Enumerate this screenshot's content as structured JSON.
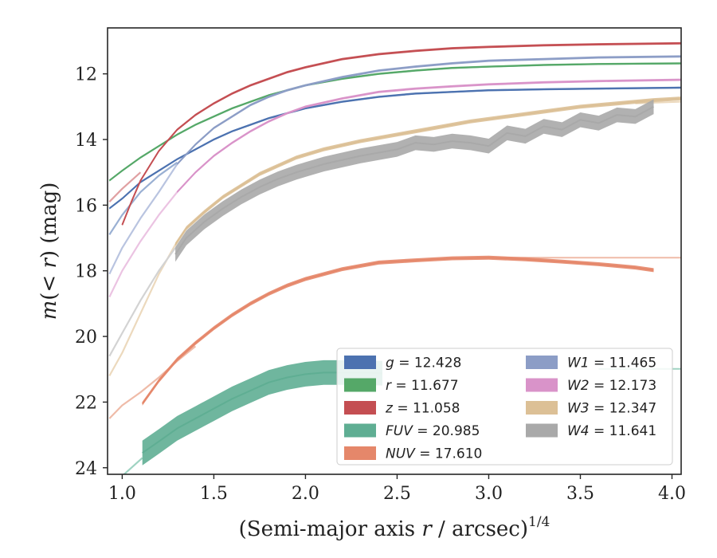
{
  "chart_data": {
    "type": "line",
    "xlabel": "(Semi-major axis r / arcsec)1/4",
    "xlabel_parts": {
      "pre": "(Semi-major axis ",
      "var": "r",
      "post": " / arcsec)",
      "sup": "1/4"
    },
    "ylabel": "m(< r) (mag)",
    "ylabel_parts": {
      "a": "m",
      "b": "(< ",
      "c": "r",
      "d": ") (mag)"
    },
    "xlim": [
      0.92,
      4.05
    ],
    "ylim": [
      24.2,
      10.6
    ],
    "y_inverted": true,
    "x_ticks": [
      "1.0",
      "1.5",
      "2.0",
      "2.5",
      "3.0",
      "3.5",
      "4.0"
    ],
    "x_tick_values": [
      1.0,
      1.5,
      2.0,
      2.5,
      3.0,
      3.5,
      4.0
    ],
    "y_ticks": [
      "12",
      "14",
      "16",
      "18",
      "20",
      "22",
      "24"
    ],
    "y_tick_values": [
      12,
      14,
      16,
      18,
      20,
      22,
      24
    ],
    "grid": false,
    "legend_position": "lower-right",
    "series": [
      {
        "name": "g = 12.428",
        "label_var": "g",
        "label_val": "= 12.428",
        "color": "#4c72b0",
        "extrap_color": "#9ab0d3",
        "data": [
          [
            0.93,
            16.1
          ],
          [
            1.0,
            15.8
          ],
          [
            1.1,
            15.3
          ],
          [
            1.2,
            14.95
          ],
          [
            1.3,
            14.6
          ],
          [
            1.4,
            14.3
          ],
          [
            1.5,
            14.0
          ],
          [
            1.6,
            13.75
          ],
          [
            1.7,
            13.55
          ],
          [
            1.8,
            13.35
          ],
          [
            1.9,
            13.2
          ],
          [
            2.0,
            13.05
          ],
          [
            2.2,
            12.85
          ],
          [
            2.4,
            12.7
          ],
          [
            2.6,
            12.6
          ],
          [
            2.8,
            12.55
          ],
          [
            3.0,
            12.5
          ],
          [
            3.3,
            12.47
          ],
          [
            3.6,
            12.45
          ],
          [
            4.05,
            12.42
          ]
        ],
        "band_width": 0.06,
        "extrap": [
          [
            0.93,
            16.9
          ],
          [
            1.0,
            16.3
          ],
          [
            1.1,
            15.6
          ],
          [
            1.2,
            15.1
          ],
          [
            1.3,
            14.7
          ]
        ]
      },
      {
        "name": "r = 11.677",
        "label_var": "r",
        "label_val": "= 11.677",
        "color": "#55a868",
        "extrap_color": "#a3cfae",
        "data": [
          [
            0.93,
            15.25
          ],
          [
            1.0,
            14.95
          ],
          [
            1.1,
            14.55
          ],
          [
            1.2,
            14.2
          ],
          [
            1.3,
            13.85
          ],
          [
            1.4,
            13.55
          ],
          [
            1.5,
            13.3
          ],
          [
            1.6,
            13.05
          ],
          [
            1.7,
            12.85
          ],
          [
            1.8,
            12.65
          ],
          [
            1.9,
            12.5
          ],
          [
            2.0,
            12.35
          ],
          [
            2.2,
            12.15
          ],
          [
            2.4,
            12.0
          ],
          [
            2.6,
            11.9
          ],
          [
            2.8,
            11.82
          ],
          [
            3.0,
            11.78
          ],
          [
            3.3,
            11.73
          ],
          [
            3.6,
            11.7
          ],
          [
            4.05,
            11.68
          ]
        ],
        "band_width": 0.06,
        "extrap": []
      },
      {
        "name": "z = 11.058",
        "label_var": "z",
        "label_val": "= 11.058",
        "color": "#c44e52",
        "extrap_color": "#e0a0a2",
        "data": [
          [
            1.0,
            16.6
          ],
          [
            1.05,
            15.9
          ],
          [
            1.1,
            15.25
          ],
          [
            1.2,
            14.35
          ],
          [
            1.3,
            13.7
          ],
          [
            1.4,
            13.25
          ],
          [
            1.5,
            12.9
          ],
          [
            1.6,
            12.6
          ],
          [
            1.7,
            12.35
          ],
          [
            1.8,
            12.15
          ],
          [
            1.9,
            11.95
          ],
          [
            2.0,
            11.8
          ],
          [
            2.2,
            11.55
          ],
          [
            2.4,
            11.4
          ],
          [
            2.6,
            11.3
          ],
          [
            2.8,
            11.22
          ],
          [
            3.0,
            11.18
          ],
          [
            3.3,
            11.13
          ],
          [
            3.6,
            11.1
          ],
          [
            4.05,
            11.07
          ]
        ],
        "band_width": 0.07,
        "extrap": [
          [
            0.93,
            15.9
          ],
          [
            1.0,
            15.5
          ],
          [
            1.1,
            15.0
          ]
        ]
      },
      {
        "name": "FUV = 20.985",
        "label_var": "FUV",
        "label_val": "= 20.985",
        "color": "#5fae93",
        "extrap_color": "#9fd3c2",
        "data": [
          [
            1.11,
            23.55
          ],
          [
            1.2,
            23.2
          ],
          [
            1.3,
            22.8
          ],
          [
            1.4,
            22.5
          ],
          [
            1.5,
            22.2
          ],
          [
            1.6,
            21.9
          ],
          [
            1.7,
            21.65
          ],
          [
            1.8,
            21.4
          ],
          [
            1.9,
            21.25
          ],
          [
            2.0,
            21.15
          ],
          [
            2.1,
            21.1
          ],
          [
            2.2,
            21.1
          ],
          [
            2.3,
            21.1
          ],
          [
            2.42,
            21.12
          ]
        ],
        "band_width": 0.75,
        "extrap": [
          [
            0.95,
            24.5
          ],
          [
            1.05,
            24.0
          ],
          [
            1.11,
            23.7
          ]
        ],
        "tail": [
          [
            3.6,
            20.99
          ],
          [
            4.05,
            20.99
          ]
        ]
      },
      {
        "name": "NUV = 17.610",
        "label_var": "NUV",
        "label_val": "= 17.610",
        "color": "#e5876a",
        "extrap_color": "#efbba8",
        "data": [
          [
            1.11,
            22.05
          ],
          [
            1.2,
            21.35
          ],
          [
            1.3,
            20.7
          ],
          [
            1.4,
            20.2
          ],
          [
            1.5,
            19.75
          ],
          [
            1.6,
            19.35
          ],
          [
            1.7,
            19.0
          ],
          [
            1.8,
            18.7
          ],
          [
            1.9,
            18.45
          ],
          [
            2.0,
            18.25
          ],
          [
            2.2,
            17.95
          ],
          [
            2.4,
            17.75
          ],
          [
            2.6,
            17.68
          ],
          [
            2.8,
            17.62
          ],
          [
            3.0,
            17.6
          ],
          [
            3.2,
            17.65
          ],
          [
            3.4,
            17.72
          ],
          [
            3.6,
            17.8
          ],
          [
            3.8,
            17.9
          ],
          [
            3.9,
            17.98
          ]
        ],
        "band_width": 0.12,
        "extrap": [
          [
            0.93,
            22.5
          ],
          [
            1.0,
            22.1
          ],
          [
            1.1,
            21.7
          ],
          [
            1.2,
            21.25
          ],
          [
            1.3,
            20.75
          ],
          [
            1.4,
            20.3
          ]
        ],
        "tail": [
          [
            3.0,
            17.6
          ],
          [
            4.05,
            17.6
          ]
        ]
      },
      {
        "name": "W1 = 11.465",
        "label_var": "W1",
        "label_val": "= 11.465",
        "color": "#8c9dc6",
        "extrap_color": "#b9c4e0",
        "data": [
          [
            1.3,
            14.75
          ],
          [
            1.4,
            14.15
          ],
          [
            1.5,
            13.65
          ],
          [
            1.6,
            13.3
          ],
          [
            1.7,
            12.95
          ],
          [
            1.8,
            12.7
          ],
          [
            1.9,
            12.5
          ],
          [
            2.0,
            12.35
          ],
          [
            2.2,
            12.1
          ],
          [
            2.4,
            11.9
          ],
          [
            2.6,
            11.78
          ],
          [
            2.8,
            11.68
          ],
          [
            3.0,
            11.6
          ],
          [
            3.3,
            11.55
          ],
          [
            3.6,
            11.5
          ],
          [
            4.05,
            11.47
          ]
        ],
        "band_width": 0.07,
        "extrap": [
          [
            0.93,
            18.1
          ],
          [
            1.0,
            17.3
          ],
          [
            1.1,
            16.4
          ],
          [
            1.2,
            15.6
          ],
          [
            1.3,
            14.75
          ]
        ]
      },
      {
        "name": "W2 = 12.173",
        "label_var": "W2",
        "label_val": "= 12.173",
        "color": "#d993c9",
        "extrap_color": "#ebc3e2",
        "data": [
          [
            1.3,
            15.6
          ],
          [
            1.4,
            15.0
          ],
          [
            1.5,
            14.5
          ],
          [
            1.6,
            14.1
          ],
          [
            1.7,
            13.75
          ],
          [
            1.8,
            13.45
          ],
          [
            1.9,
            13.2
          ],
          [
            2.0,
            13.0
          ],
          [
            2.2,
            12.75
          ],
          [
            2.4,
            12.55
          ],
          [
            2.6,
            12.45
          ],
          [
            2.8,
            12.38
          ],
          [
            3.0,
            12.32
          ],
          [
            3.3,
            12.26
          ],
          [
            3.6,
            12.22
          ],
          [
            4.05,
            12.18
          ]
        ],
        "band_width": 0.07,
        "extrap": [
          [
            0.93,
            18.8
          ],
          [
            1.0,
            18.0
          ],
          [
            1.1,
            17.1
          ],
          [
            1.2,
            16.3
          ],
          [
            1.3,
            15.6
          ]
        ]
      },
      {
        "name": "W3 = 12.347",
        "label_var": "W3",
        "label_val": "= 12.347",
        "color": "#dcc096",
        "extrap_color": "#ecd9bd",
        "data": [
          [
            1.29,
            17.2
          ],
          [
            1.35,
            16.7
          ],
          [
            1.45,
            16.2
          ],
          [
            1.55,
            15.75
          ],
          [
            1.65,
            15.4
          ],
          [
            1.75,
            15.05
          ],
          [
            1.85,
            14.8
          ],
          [
            1.95,
            14.55
          ],
          [
            2.1,
            14.3
          ],
          [
            2.3,
            14.05
          ],
          [
            2.5,
            13.85
          ],
          [
            2.7,
            13.65
          ],
          [
            2.9,
            13.45
          ],
          [
            3.1,
            13.3
          ],
          [
            3.3,
            13.15
          ],
          [
            3.5,
            13.0
          ],
          [
            3.7,
            12.9
          ],
          [
            3.9,
            12.8
          ],
          [
            4.05,
            12.75
          ]
        ],
        "band_width": 0.12,
        "extrap": [
          [
            0.93,
            21.2
          ],
          [
            1.0,
            20.5
          ],
          [
            1.1,
            19.3
          ],
          [
            1.2,
            18.1
          ],
          [
            1.29,
            17.2
          ]
        ],
        "tail": [
          [
            3.8,
            12.9
          ],
          [
            4.05,
            12.85
          ]
        ]
      },
      {
        "name": "W4 = 11.641",
        "label_var": "W4",
        "label_val": "= 11.641",
        "color": "#a9a9a9",
        "extrap_color": "#d3d3d3",
        "data": [
          [
            1.29,
            17.5
          ],
          [
            1.35,
            17.0
          ],
          [
            1.45,
            16.5
          ],
          [
            1.55,
            16.1
          ],
          [
            1.65,
            15.75
          ],
          [
            1.75,
            15.45
          ],
          [
            1.85,
            15.2
          ],
          [
            1.95,
            15.0
          ],
          [
            2.1,
            14.75
          ],
          [
            2.3,
            14.5
          ],
          [
            2.5,
            14.3
          ],
          [
            2.6,
            14.1
          ],
          [
            2.7,
            14.15
          ],
          [
            2.8,
            14.05
          ],
          [
            2.9,
            14.1
          ],
          [
            3.0,
            14.2
          ],
          [
            3.1,
            13.8
          ],
          [
            3.2,
            13.9
          ],
          [
            3.3,
            13.6
          ],
          [
            3.4,
            13.7
          ],
          [
            3.5,
            13.4
          ],
          [
            3.6,
            13.5
          ],
          [
            3.7,
            13.25
          ],
          [
            3.8,
            13.3
          ],
          [
            3.9,
            13.0
          ]
        ],
        "band_width": 0.45,
        "extrap": [
          [
            0.93,
            20.6
          ],
          [
            1.0,
            19.9
          ],
          [
            1.1,
            18.9
          ],
          [
            1.2,
            18.0
          ],
          [
            1.29,
            17.3
          ]
        ]
      }
    ]
  }
}
